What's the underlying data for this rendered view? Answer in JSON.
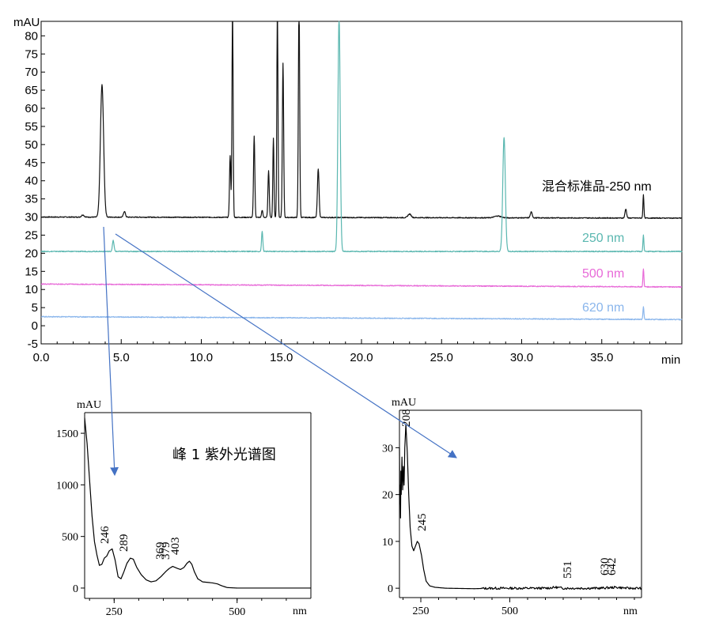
{
  "chart_data": [
    {
      "type": "line",
      "name_hint": "chromatogram",
      "ylabel": "mAU",
      "xlabel": "min",
      "xlim": [
        0,
        40
      ],
      "ylim": [
        -5,
        84
      ],
      "x_ticks": [
        "0.0",
        "5.0",
        "10.0",
        "15.0",
        "20.0",
        "25.0",
        "30.0",
        "35.0"
      ],
      "y_ticks": [
        "-5",
        "0",
        "5",
        "10",
        "15",
        "20",
        "25",
        "30",
        "35",
        "40",
        "45",
        "50",
        "55",
        "60",
        "65",
        "70",
        "75",
        "80"
      ],
      "series": [
        {
          "name": "混合标准品-250 nm",
          "color": "#111111",
          "baseline": 30,
          "peaks": [
            [
              2.6,
              0.6,
              0.08
            ],
            [
              3.8,
              36.5,
              0.1
            ],
            [
              5.2,
              1.6,
              0.06
            ],
            [
              11.8,
              17,
              0.04
            ],
            [
              11.95,
              60,
              0.035
            ],
            [
              13.3,
              22.5,
              0.04
            ],
            [
              13.8,
              2,
              0.04
            ],
            [
              14.2,
              13,
              0.04
            ],
            [
              14.5,
              22,
              0.035
            ],
            [
              14.75,
              60,
              0.035
            ],
            [
              15.1,
              42.5,
              0.04
            ],
            [
              16.1,
              60,
              0.04
            ],
            [
              17.3,
              13.5,
              0.05
            ],
            [
              23,
              1,
              0.1
            ],
            [
              28.5,
              0.5,
              0.2
            ],
            [
              30.6,
              1.6,
              0.06
            ],
            [
              36.5,
              2.5,
              0.05
            ],
            [
              37.6,
              6.5,
              0.03
            ]
          ]
        },
        {
          "name": "250 nm",
          "color": "#5ab7b0",
          "baseline": 20.5,
          "peaks": [
            [
              4.5,
              3,
              0.05
            ],
            [
              13.8,
              5.5,
              0.04
            ],
            [
              18.6,
              65,
              0.07
            ],
            [
              28.9,
              31.5,
              0.08
            ],
            [
              37.6,
              4.5,
              0.03
            ]
          ]
        },
        {
          "name": "500 nm",
          "color": "#e86ad8",
          "baseline": 11.5,
          "peaks": [
            [
              37.6,
              5,
              0.03
            ]
          ]
        },
        {
          "name": "620 nm",
          "color": "#8ab6ec",
          "baseline": 2.5,
          "peaks": [
            [
              37.6,
              3.5,
              0.03
            ]
          ]
        }
      ]
    },
    {
      "type": "line",
      "name_hint": "uv-spectrum-peak-1",
      "ylabel": "mAU",
      "xlabel": "nm",
      "xlim": [
        190,
        650
      ],
      "ylim": [
        -100,
        1700
      ],
      "x_ticks": [
        "250",
        "500"
      ],
      "y_ticks": [
        "0",
        "500",
        "1000",
        "1500"
      ],
      "annotation": "峰 1 紫外光谱图",
      "peak_labels": [
        "246",
        "289",
        "369",
        "379",
        "403"
      ],
      "color": "#000000",
      "points": [
        [
          190,
          1650
        ],
        [
          195,
          1400
        ],
        [
          200,
          1050
        ],
        [
          205,
          700
        ],
        [
          210,
          450
        ],
        [
          215,
          320
        ],
        [
          220,
          220
        ],
        [
          225,
          230
        ],
        [
          230,
          290
        ],
        [
          235,
          310
        ],
        [
          240,
          360
        ],
        [
          246,
          380
        ],
        [
          252,
          270
        ],
        [
          258,
          110
        ],
        [
          264,
          90
        ],
        [
          270,
          160
        ],
        [
          276,
          240
        ],
        [
          283,
          290
        ],
        [
          289,
          280
        ],
        [
          296,
          200
        ],
        [
          305,
          130
        ],
        [
          315,
          80
        ],
        [
          325,
          60
        ],
        [
          335,
          70
        ],
        [
          345,
          110
        ],
        [
          355,
          160
        ],
        [
          362,
          190
        ],
        [
          369,
          210
        ],
        [
          374,
          200
        ],
        [
          379,
          190
        ],
        [
          385,
          180
        ],
        [
          392,
          200
        ],
        [
          398,
          240
        ],
        [
          403,
          260
        ],
        [
          408,
          230
        ],
        [
          413,
          160
        ],
        [
          420,
          90
        ],
        [
          430,
          60
        ],
        [
          440,
          55
        ],
        [
          450,
          50
        ],
        [
          460,
          40
        ],
        [
          470,
          20
        ],
        [
          480,
          5
        ],
        [
          500,
          0
        ],
        [
          550,
          0
        ],
        [
          600,
          0
        ],
        [
          650,
          0
        ]
      ]
    },
    {
      "type": "line",
      "name_hint": "uv-spectrum-peak-2",
      "ylabel": "mAU",
      "xlabel": "nm",
      "xlim": [
        190,
        870
      ],
      "ylim": [
        -2,
        38
      ],
      "x_ticks": [
        "250",
        "500"
      ],
      "y_ticks": [
        "0",
        "10",
        "20",
        "30"
      ],
      "peak_labels": [
        "208",
        "245",
        "551",
        "630",
        "642"
      ],
      "color": "#000000",
      "points": [
        [
          190,
          30
        ],
        [
          191,
          18
        ],
        [
          192,
          22
        ],
        [
          193,
          15
        ],
        [
          194,
          25
        ],
        [
          195,
          20
        ],
        [
          197,
          28
        ],
        [
          199,
          21
        ],
        [
          201,
          26
        ],
        [
          203,
          22
        ],
        [
          205,
          30
        ],
        [
          208,
          35
        ],
        [
          212,
          29
        ],
        [
          216,
          20
        ],
        [
          220,
          13
        ],
        [
          225,
          9
        ],
        [
          230,
          8
        ],
        [
          235,
          9
        ],
        [
          240,
          10
        ],
        [
          245,
          9.5
        ],
        [
          252,
          7
        ],
        [
          258,
          4
        ],
        [
          265,
          1.5
        ],
        [
          275,
          0.5
        ],
        [
          290,
          0.2
        ],
        [
          320,
          0
        ],
        [
          400,
          -0.1
        ],
        [
          450,
          0
        ],
        [
          500,
          0
        ],
        [
          550,
          0
        ],
        [
          600,
          0
        ],
        [
          630,
          0.2
        ],
        [
          650,
          0
        ],
        [
          700,
          0
        ],
        [
          750,
          0
        ],
        [
          800,
          0.2
        ],
        [
          830,
          0
        ],
        [
          870,
          0
        ]
      ]
    }
  ]
}
